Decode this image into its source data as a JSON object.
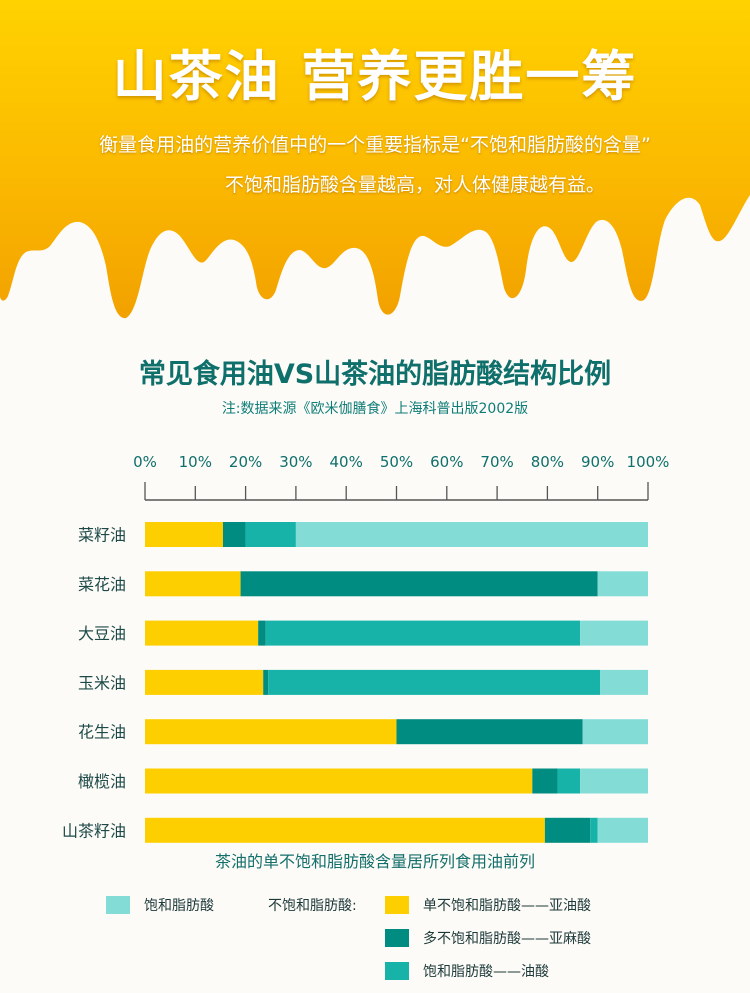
{
  "header": {
    "title": "山茶油 营养更胜一筹",
    "subtitle_line1": "衡量食用油的营养价值中的一个重要指标是“不饱和脂肪酸的含量”",
    "subtitle_line2": "不饱和脂肪酸含量越高，对人体健康越有益。"
  },
  "colors": {
    "saturated": "#84dcd7",
    "monounsaturated": "#fdcf00",
    "polyunsaturated": "#008c80",
    "oleic": "#17b3a9",
    "accent": "#0e6f6b"
  },
  "chart_data": {
    "type": "bar",
    "orientation": "horizontal",
    "stacked": true,
    "title": "常见食用油VS山茶油的脂肪酸结构比例",
    "note": "注:数据来源《欧米伽膳食》上海科普出版2002版",
    "x_ticks": [
      "0%",
      "10%",
      "20%",
      "30%",
      "40%",
      "50%",
      "60%",
      "70%",
      "80%",
      "90%",
      "100%"
    ],
    "xlim": [
      0,
      100
    ],
    "categories": [
      "菜籽油",
      "菜花油",
      "大豆油",
      "玉米油",
      "花生油",
      "橄榄油",
      "山茶籽油"
    ],
    "series": [
      {
        "key": "mono",
        "values": [
          15.5,
          19,
          22.5,
          23.5,
          50,
          77,
          79.5
        ]
      },
      {
        "key": "poly",
        "values": [
          4.5,
          71,
          1.5,
          1,
          37,
          5,
          9
        ]
      },
      {
        "key": "oleic",
        "values": [
          10,
          0,
          62.5,
          66,
          0,
          4.5,
          1.5
        ]
      },
      {
        "key": "sat",
        "values": [
          70,
          10,
          13.5,
          9.5,
          13,
          13.5,
          10
        ]
      }
    ],
    "caption": "茶油的单不饱和脂肪酸含量居所列食用油前列"
  },
  "legend": {
    "saturated": "饱和脂肪酸",
    "unsaturated_label": "不饱和脂肪酸:",
    "mono": "单不饱和脂肪酸——亚油酸",
    "poly": "多不饱和脂肪酸——亚麻酸",
    "oleic": "饱和脂肪酸——油酸"
  }
}
